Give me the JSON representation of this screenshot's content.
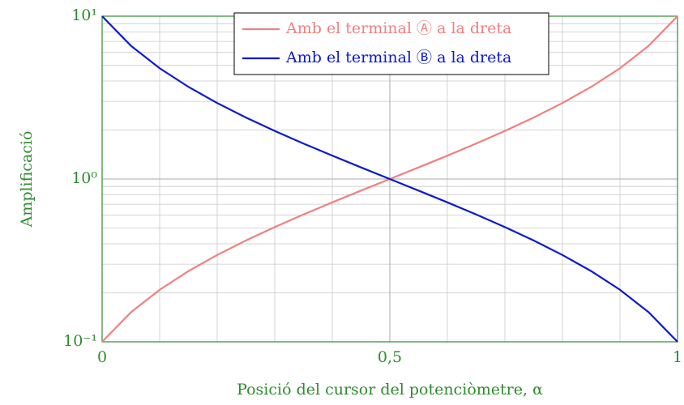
{
  "chart_data": {
    "type": "line",
    "xlabel": "Posició del cursor del potenciòmetre, α",
    "ylabel": "Amplificació",
    "x": [
      0,
      0.05,
      0.1,
      0.15,
      0.2,
      0.25,
      0.3,
      0.35,
      0.4,
      0.45,
      0.5,
      0.55,
      0.6,
      0.65,
      0.7,
      0.75,
      0.8,
      0.85,
      0.9,
      0.95,
      1
    ],
    "series": [
      {
        "name": "Amb el terminal Ⓐ a la dreta",
        "color": "#f08080",
        "values": [
          0.1,
          0.1518,
          0.2088,
          0.2717,
          0.3415,
          0.4194,
          0.5068,
          0.6058,
          0.7188,
          0.8487,
          1,
          1.1782,
          1.3913,
          1.6506,
          1.973,
          2.3846,
          2.9286,
          3.6809,
          4.7895,
          6.5862,
          10
        ]
      },
      {
        "name": "Amb el terminal Ⓑ a la dreta",
        "color": "#0a1ad0",
        "values": [
          10,
          6.5862,
          4.7895,
          3.6809,
          2.9286,
          2.3846,
          1.973,
          1.6506,
          1.3913,
          1.1782,
          1,
          0.8487,
          0.7188,
          0.6058,
          0.5068,
          0.4194,
          0.3415,
          0.2717,
          0.2088,
          0.1518,
          0.1
        ]
      }
    ],
    "xlim": [
      0,
      1
    ],
    "xticks": [
      0,
      {
        "value": 0.5,
        "label": "0,5"
      },
      1
    ],
    "ylim": [
      0.1,
      10
    ],
    "yticks": [
      {
        "value": 0.1,
        "label": "10⁻¹"
      },
      {
        "value": 1,
        "label": "10⁰"
      },
      {
        "value": 10,
        "label": "10¹"
      }
    ],
    "ylog": true,
    "grid": true,
    "minor_grid": true,
    "legend": "upper center",
    "axis_color": "#2e8b2e"
  }
}
